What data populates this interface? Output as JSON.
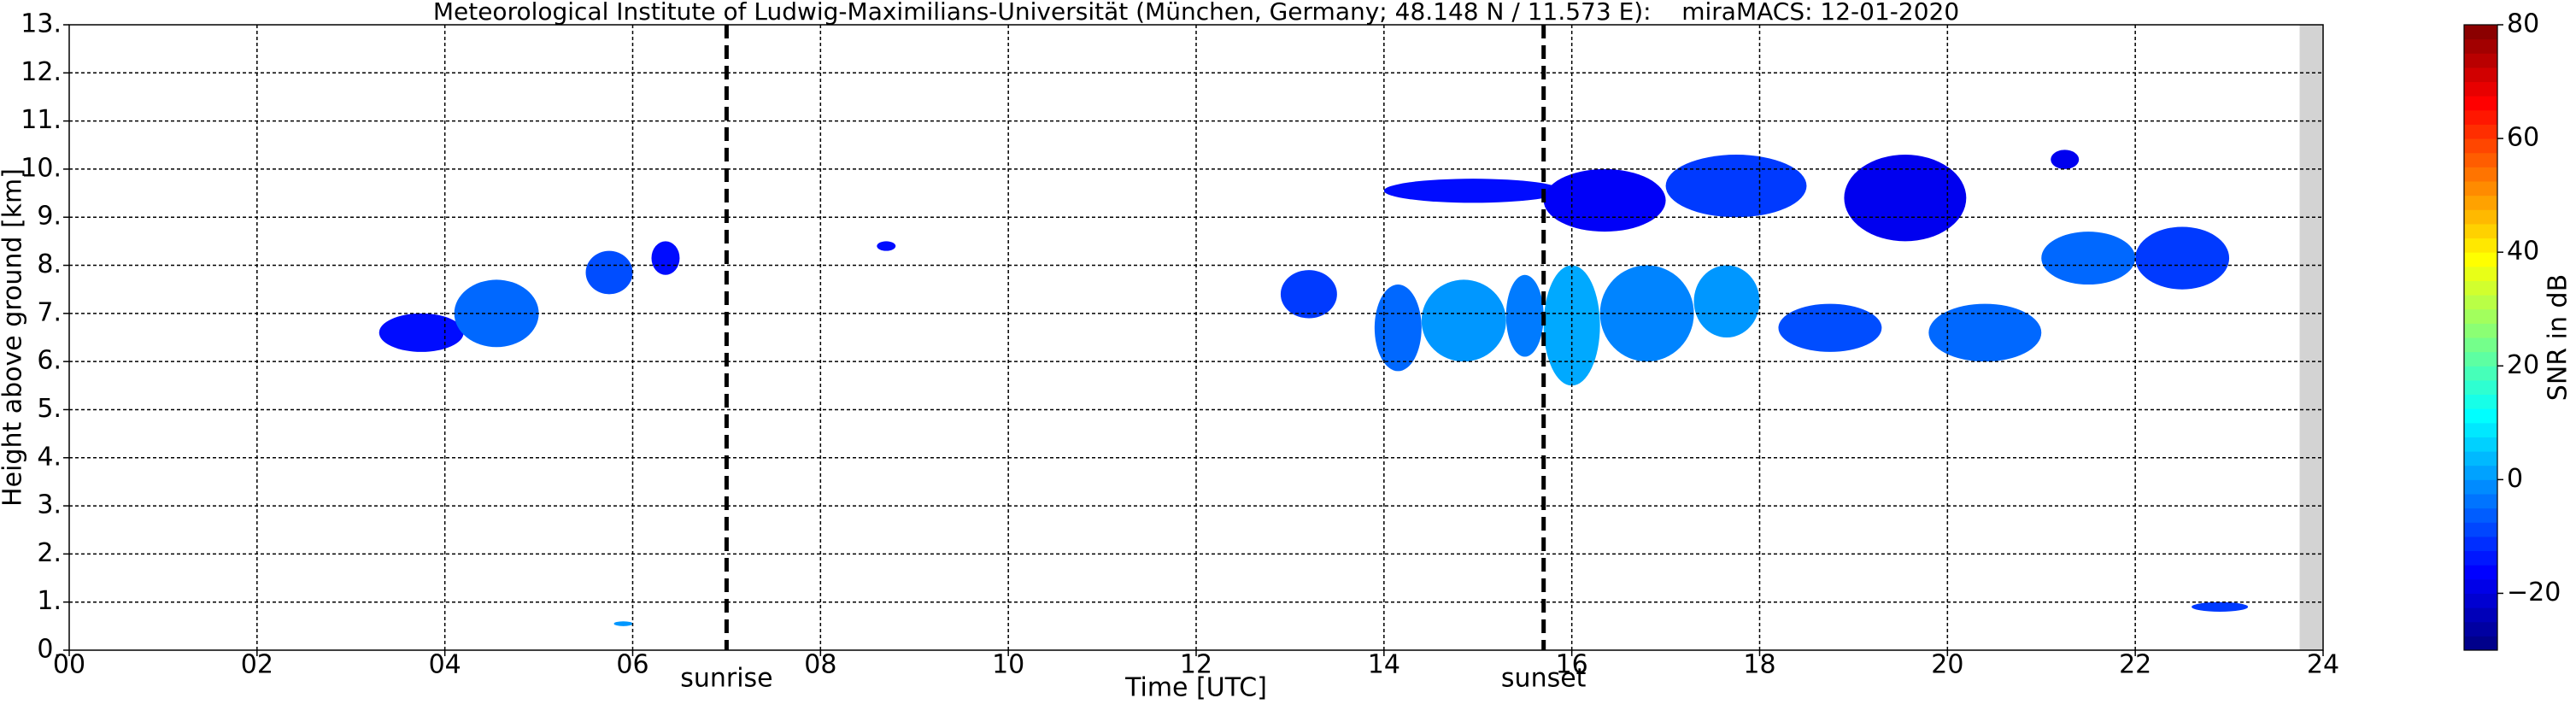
{
  "chart_data": {
    "type": "heatmap",
    "title": "Meteorological Institute of Ludwig-Maximilians-Universität (München, Germany; 48.148 N / 11.573 E):    miraMACS: 12-01-2020",
    "xlabel": "Time [UTC]",
    "ylabel": "Height above ground [km]",
    "colorbar_label": "SNR in dB",
    "xlim": [
      0,
      24
    ],
    "ylim": [
      0,
      13
    ],
    "xticks": [
      {
        "value": 0,
        "label": "00"
      },
      {
        "value": 2,
        "label": "02"
      },
      {
        "value": 4,
        "label": "04"
      },
      {
        "value": 6,
        "label": "06"
      },
      {
        "value": 8,
        "label": "08"
      },
      {
        "value": 10,
        "label": "10"
      },
      {
        "value": 12,
        "label": "12"
      },
      {
        "value": 14,
        "label": "14"
      },
      {
        "value": 16,
        "label": "16"
      },
      {
        "value": 18,
        "label": "18"
      },
      {
        "value": 20,
        "label": "20"
      },
      {
        "value": 22,
        "label": "22"
      },
      {
        "value": 24,
        "label": "24"
      }
    ],
    "yticks": [
      {
        "value": 0,
        "label": "0."
      },
      {
        "value": 1,
        "label": "1."
      },
      {
        "value": 2,
        "label": "2."
      },
      {
        "value": 3,
        "label": "3."
      },
      {
        "value": 4,
        "label": "4."
      },
      {
        "value": 5,
        "label": "5."
      },
      {
        "value": 6,
        "label": "6."
      },
      {
        "value": 7,
        "label": "7."
      },
      {
        "value": 8,
        "label": "8."
      },
      {
        "value": 9,
        "label": "9."
      },
      {
        "value": 10,
        "label": "10."
      },
      {
        "value": 11,
        "label": "11."
      },
      {
        "value": 12,
        "label": "12."
      },
      {
        "value": 13,
        "label": "13."
      }
    ],
    "clim": [
      -30,
      80
    ],
    "cticks": [
      {
        "value": -20,
        "label": "−20"
      },
      0,
      20,
      40,
      60,
      80
    ],
    "colormap": "jet",
    "grid": true,
    "nodata_x": [
      23.75,
      24
    ],
    "annotations": [
      {
        "x": 7.0,
        "label": "sunrise"
      },
      {
        "x": 15.7,
        "label": "sunset"
      }
    ],
    "echoes": [
      {
        "x": [
          3.3,
          4.2
        ],
        "y": [
          6.2,
          7.0
        ],
        "snr": -15
      },
      {
        "x": [
          4.1,
          5.0
        ],
        "y": [
          6.3,
          7.7
        ],
        "snr": -5
      },
      {
        "x": [
          5.5,
          6.0
        ],
        "y": [
          7.4,
          8.3
        ],
        "snr": -8
      },
      {
        "x": [
          6.2,
          6.5
        ],
        "y": [
          7.8,
          8.5
        ],
        "snr": -15
      },
      {
        "x": [
          8.6,
          8.8
        ],
        "y": [
          8.3,
          8.5
        ],
        "snr": -15
      },
      {
        "x": [
          12.9,
          13.5
        ],
        "y": [
          6.9,
          7.9
        ],
        "snr": -10
      },
      {
        "x": [
          13.9,
          14.4
        ],
        "y": [
          5.8,
          7.6
        ],
        "snr": -5
      },
      {
        "x": [
          14.4,
          15.3
        ],
        "y": [
          6.0,
          7.7
        ],
        "snr": 0
      },
      {
        "x": [
          15.3,
          15.7
        ],
        "y": [
          6.1,
          7.8
        ],
        "snr": -3
      },
      {
        "x": [
          15.7,
          16.3
        ],
        "y": [
          5.5,
          8.0
        ],
        "snr": 2
      },
      {
        "x": [
          16.3,
          17.3
        ],
        "y": [
          6.0,
          8.0
        ],
        "snr": -2
      },
      {
        "x": [
          17.3,
          18.0
        ],
        "y": [
          6.5,
          8.0
        ],
        "snr": 0
      },
      {
        "x": [
          18.2,
          19.3
        ],
        "y": [
          6.2,
          7.2
        ],
        "snr": -8
      },
      {
        "x": [
          19.8,
          21.0
        ],
        "y": [
          6.0,
          7.2
        ],
        "snr": -5
      },
      {
        "x": [
          14.0,
          15.9
        ],
        "y": [
          9.3,
          9.8
        ],
        "snr": -15
      },
      {
        "x": [
          15.7,
          17.0
        ],
        "y": [
          8.7,
          10.0
        ],
        "snr": -17
      },
      {
        "x": [
          17.0,
          18.5
        ],
        "y": [
          9.0,
          10.3
        ],
        "snr": -10
      },
      {
        "x": [
          18.9,
          20.2
        ],
        "y": [
          8.5,
          10.3
        ],
        "snr": -18
      },
      {
        "x": [
          21.0,
          22.0
        ],
        "y": [
          7.6,
          8.7
        ],
        "snr": -5
      },
      {
        "x": [
          22.0,
          23.0
        ],
        "y": [
          7.5,
          8.8
        ],
        "snr": -10
      },
      {
        "x": [
          21.1,
          21.4
        ],
        "y": [
          10.0,
          10.4
        ],
        "snr": -18
      },
      {
        "x": [
          22.6,
          23.2
        ],
        "y": [
          0.8,
          1.0
        ],
        "snr": -10
      },
      {
        "x": [
          5.8,
          6.0
        ],
        "y": [
          0.5,
          0.6
        ],
        "snr": 0
      }
    ]
  }
}
